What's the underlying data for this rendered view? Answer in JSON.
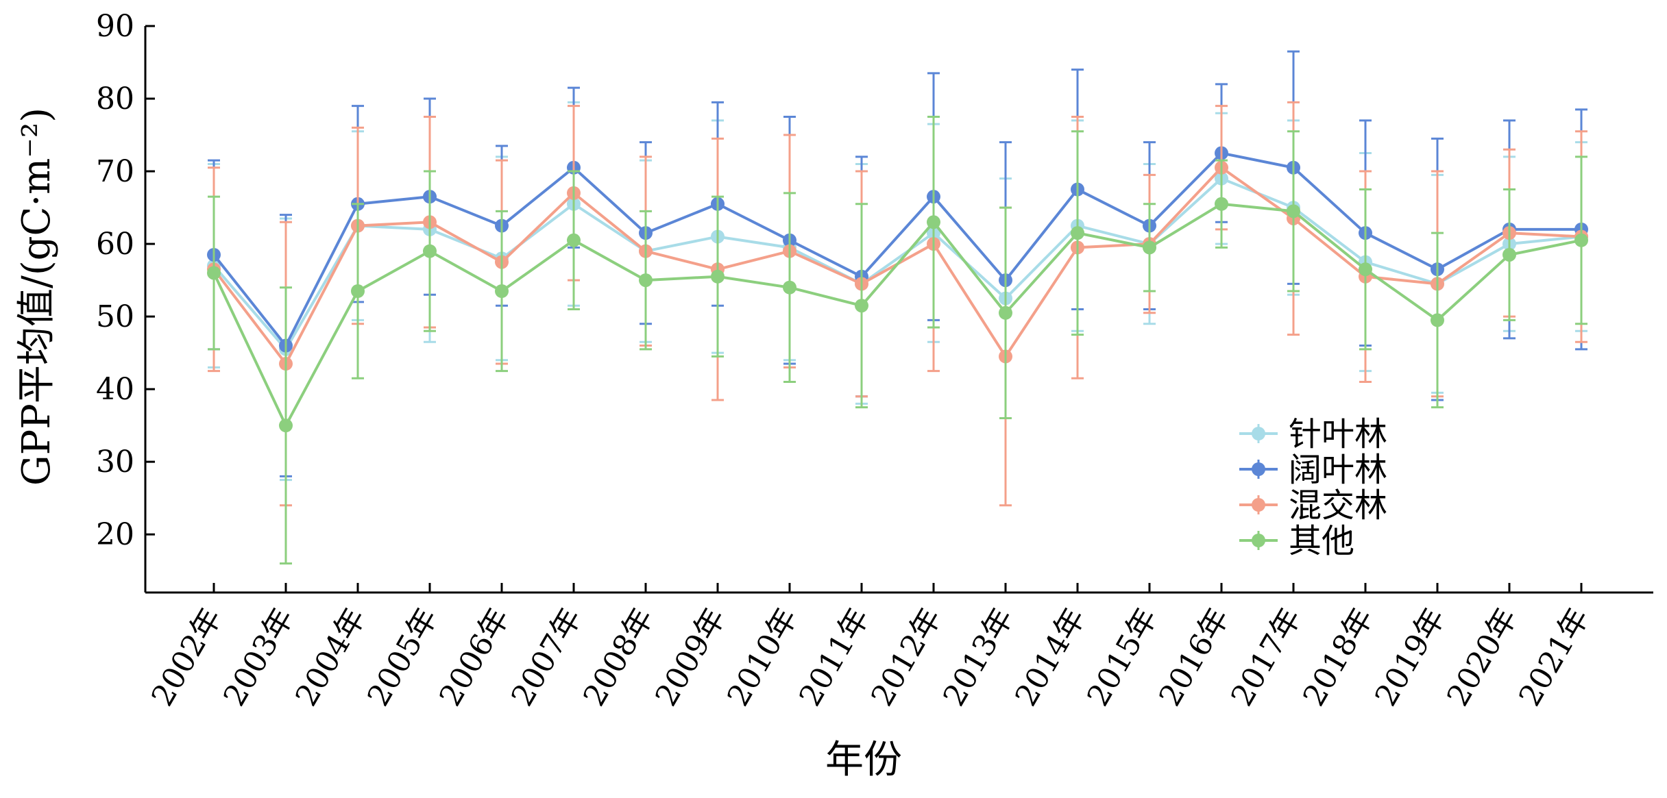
{
  "chart_data": {
    "type": "line",
    "xlabel": "年份",
    "ylabel": "GPP平均值/(gC·m⁻²)",
    "ylim": [
      12,
      90
    ],
    "yticks": [
      20,
      30,
      40,
      50,
      60,
      70,
      80,
      90
    ],
    "grid": false,
    "legend_position": "lower-right",
    "categories": [
      "2002年",
      "2003年",
      "2004年",
      "2005年",
      "2006年",
      "2007年",
      "2008年",
      "2009年",
      "2010年",
      "2011年",
      "2012年",
      "2013年",
      "2014年",
      "2015年",
      "2016年",
      "2017年",
      "2018年",
      "2019年",
      "2020年",
      "2021年"
    ],
    "series": [
      {
        "name": "针叶林",
        "color": "#a8dce8",
        "values": [
          57.0,
          45.5,
          62.5,
          62.0,
          58.0,
          65.5,
          59.0,
          61.0,
          59.5,
          54.5,
          61.5,
          52.5,
          62.5,
          60.0,
          69.0,
          65.0,
          57.5,
          54.5,
          60.0,
          61.0
        ],
        "errors": [
          14.0,
          18.0,
          13.0,
          15.5,
          14.0,
          14.0,
          12.5,
          16.0,
          15.5,
          16.5,
          15.0,
          16.5,
          14.5,
          11.0,
          9.0,
          12.0,
          15.0,
          15.0,
          12.0,
          13.0
        ]
      },
      {
        "name": "阔叶林",
        "color": "#5b86d6",
        "values": [
          58.5,
          46.0,
          65.5,
          66.5,
          62.5,
          70.5,
          61.5,
          65.5,
          60.5,
          55.5,
          66.5,
          55.0,
          67.5,
          62.5,
          72.5,
          70.5,
          61.5,
          56.5,
          62.0,
          62.0
        ],
        "errors": [
          13.0,
          18.0,
          13.5,
          13.5,
          11.0,
          11.0,
          12.5,
          14.0,
          17.0,
          16.5,
          17.0,
          19.0,
          16.5,
          11.5,
          9.5,
          16.0,
          15.5,
          18.0,
          15.0,
          16.5
        ]
      },
      {
        "name": "混交林",
        "color": "#f4a08a",
        "values": [
          56.5,
          43.5,
          62.5,
          63.0,
          57.5,
          67.0,
          59.0,
          56.5,
          59.0,
          54.5,
          60.0,
          44.5,
          59.5,
          60.0,
          70.5,
          63.5,
          55.5,
          54.5,
          61.5,
          61.0
        ],
        "errors": [
          14.0,
          19.5,
          13.5,
          14.5,
          14.0,
          12.0,
          13.0,
          18.0,
          16.0,
          15.5,
          17.5,
          20.5,
          18.0,
          9.5,
          8.5,
          16.0,
          14.5,
          15.5,
          11.5,
          14.5
        ]
      },
      {
        "name": "其他",
        "color": "#8ccf7e",
        "values": [
          56.0,
          35.0,
          53.5,
          59.0,
          53.5,
          60.5,
          55.0,
          55.5,
          54.0,
          51.5,
          63.0,
          50.5,
          61.5,
          59.5,
          65.5,
          64.5,
          56.5,
          49.5,
          58.5,
          60.5
        ],
        "errors": [
          10.5,
          19.0,
          12.0,
          11.0,
          11.0,
          9.5,
          9.5,
          11.0,
          13.0,
          14.0,
          14.5,
          14.5,
          14.0,
          6.0,
          6.0,
          11.0,
          11.0,
          12.0,
          9.0,
          11.5
        ]
      }
    ]
  }
}
